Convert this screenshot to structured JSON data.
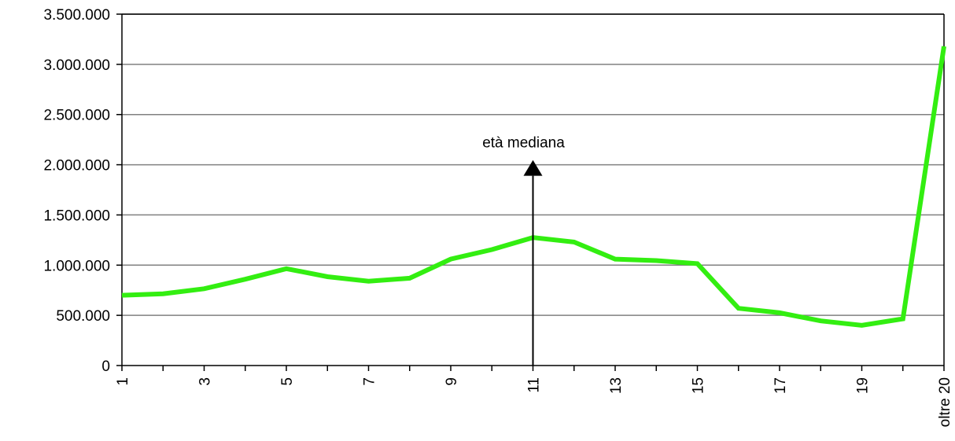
{
  "chart_data": {
    "type": "line",
    "title": "",
    "xlabel": "",
    "ylabel": "",
    "categories": [
      "1",
      "2",
      "3",
      "4",
      "5",
      "6",
      "7",
      "8",
      "9",
      "10",
      "11",
      "12",
      "13",
      "14",
      "15",
      "16",
      "17",
      "18",
      "19",
      "20",
      "oltre 20"
    ],
    "x_tick_labels_shown": [
      "1",
      "3",
      "5",
      "7",
      "9",
      "11",
      "13",
      "15",
      "17",
      "19",
      "oltre 20"
    ],
    "series": [
      {
        "color": "#33ee11",
        "values": [
          700000,
          715000,
          765000,
          860000,
          965000,
          885000,
          840000,
          870000,
          1060000,
          1155000,
          1275000,
          1230000,
          1060000,
          1045000,
          1015000,
          570000,
          525000,
          445000,
          400000,
          465000,
          3180000
        ]
      }
    ],
    "ylim": [
      0,
      3500000
    ],
    "y_ticks": [
      0,
      500000,
      1000000,
      1500000,
      2000000,
      2500000,
      3000000,
      3500000
    ],
    "y_tick_labels": [
      "0",
      "500.000",
      "1.000.000",
      "1.500.000",
      "2.000.000",
      "2.500.000",
      "3.000.000",
      "3.500.000"
    ],
    "grid": "horizontal",
    "annotation": {
      "text": "età mediana",
      "category": "11",
      "arrow_tip_value": 2000000
    }
  }
}
